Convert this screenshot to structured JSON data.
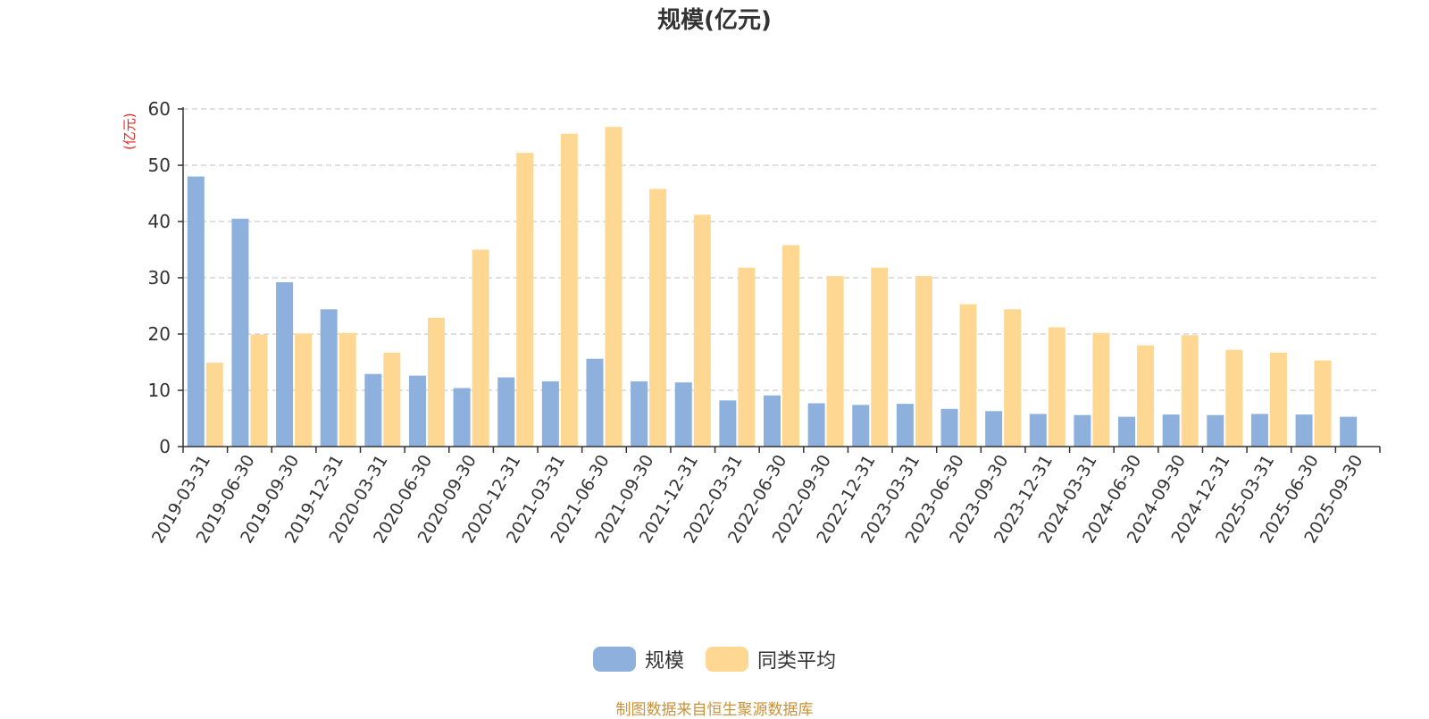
{
  "chart_data": {
    "type": "bar",
    "title": "规模(亿元)",
    "ylabel": "(亿元)",
    "xlabel": "",
    "ylim": [
      0,
      60
    ],
    "yticks": [
      0,
      10,
      20,
      30,
      40,
      50,
      60
    ],
    "grid": true,
    "legend_position": "bottom",
    "categories": [
      "2019-03-31",
      "2019-06-30",
      "2019-09-30",
      "2019-12-31",
      "2020-03-31",
      "2020-06-30",
      "2020-09-30",
      "2020-12-31",
      "2021-03-31",
      "2021-06-30",
      "2021-09-30",
      "2021-12-31",
      "2022-03-31",
      "2022-06-30",
      "2022-09-30",
      "2022-12-31",
      "2023-03-31",
      "2023-06-30",
      "2023-09-30",
      "2023-12-31",
      "2024-03-31",
      "2024-06-30",
      "2024-09-30",
      "2024-12-31",
      "2025-03-31",
      "2025-06-30",
      "2025-09-30"
    ],
    "series": [
      {
        "name": "规模",
        "color": "#8eb0dd",
        "values": [
          48.0,
          40.5,
          29.2,
          24.4,
          12.9,
          12.6,
          10.4,
          12.3,
          11.6,
          15.6,
          11.6,
          11.4,
          8.2,
          9.1,
          7.7,
          7.4,
          7.6,
          6.7,
          6.3,
          5.8,
          5.6,
          5.3,
          5.7,
          5.6,
          5.8,
          5.7,
          5.3
        ]
      },
      {
        "name": "同类平均",
        "color": "#fed893",
        "values": [
          14.9,
          19.9,
          20.1,
          20.2,
          16.7,
          22.9,
          35.0,
          52.2,
          55.6,
          56.8,
          45.8,
          41.2,
          31.8,
          35.8,
          30.3,
          31.8,
          30.3,
          25.3,
          24.4,
          21.2,
          20.2,
          18.0,
          19.8,
          17.2,
          16.7,
          15.3,
          null
        ]
      }
    ]
  },
  "footer": {
    "source": "制图数据来自恒生聚源数据库"
  },
  "style": {
    "axis_color": "#333333",
    "grid_color": "#cccccc",
    "ylabel_color": "#ee2222"
  }
}
